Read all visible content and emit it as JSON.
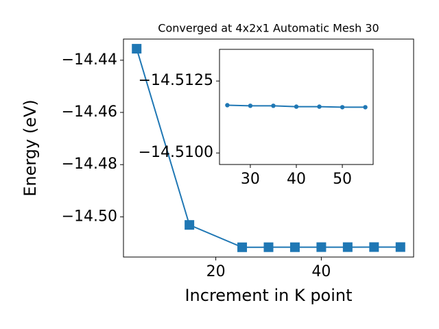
{
  "chart_data": [
    {
      "type": "line",
      "title": "Converged at 4x2x1 Automatic Mesh 30",
      "x_label": "Increment in K point",
      "y_label": "Energy (eV)",
      "x": [
        5,
        15,
        25,
        30,
        35,
        40,
        45,
        50,
        55
      ],
      "series": [
        {
          "color": "#1f77b4",
          "marker": "square",
          "values": [
            -14.4356,
            -14.5031,
            -14.51166,
            -14.51164,
            -14.51164,
            -14.51161,
            -14.51161,
            -14.51159,
            -14.51159
          ]
        }
      ],
      "xlim": [
        2.5,
        57.5
      ],
      "xticks": [
        20,
        40
      ],
      "ylim": [
        -14.5154,
        -14.4319
      ],
      "yticks": [
        {
          "value": -14.5,
          "label": "−14.50"
        },
        {
          "value": -14.48,
          "label": "−14.48"
        },
        {
          "value": -14.46,
          "label": "−14.46"
        },
        {
          "value": -14.44,
          "label": "−14.44"
        }
      ]
    },
    {
      "type": "line",
      "x": [
        25,
        30,
        35,
        40,
        45,
        50,
        55
      ],
      "series": [
        {
          "color": "#1f77b4",
          "marker": "circle",
          "values": [
            -14.51166,
            -14.51164,
            -14.51164,
            -14.51161,
            -14.51161,
            -14.51159,
            -14.51159
          ]
        }
      ],
      "xlim": [
        23.3,
        56.7
      ],
      "xticks": [
        30,
        40,
        50
      ],
      "ylim": [
        -14.5096,
        -14.5136
      ],
      "yticks": [
        {
          "value": -14.51,
          "label": "−14.5100"
        },
        {
          "value": -14.5125,
          "label": "−14.5125"
        }
      ]
    }
  ]
}
